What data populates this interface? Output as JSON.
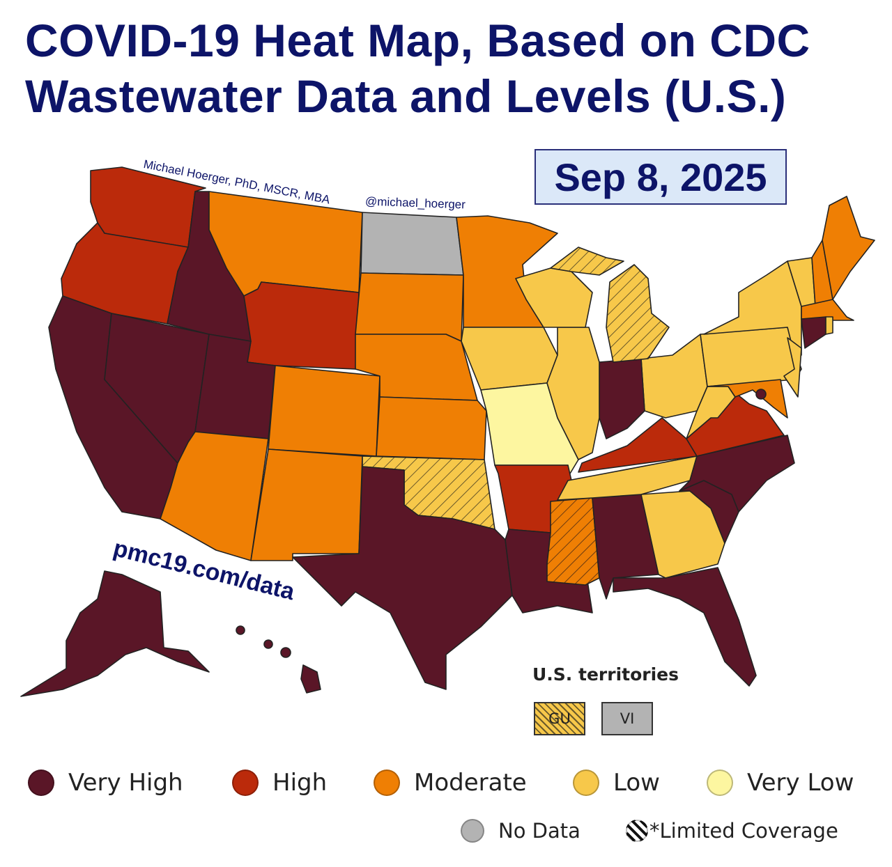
{
  "title_line1": "COVID-19 Heat Map, Based on CDC",
  "title_line2": "Wastewater Data and Levels (U.S.)",
  "date": "Sep 8, 2025",
  "credit": "Michael Hoerger, PhD, MSCR, MBA",
  "handle": "@michael_hoerger",
  "url": "pmc19.com/data",
  "territories": {
    "title": "U.S. territories",
    "items": [
      {
        "label": "GU",
        "level": "low",
        "limited": true
      },
      {
        "label": "VI",
        "level": "nodata",
        "limited": false
      }
    ]
  },
  "colors": {
    "veryhigh": "#5a1627",
    "high": "#bb2a0b",
    "moderate": "#ef7f04",
    "low": "#f7c84a",
    "verylow": "#fdf6a0",
    "nodata": "#b3b3b3",
    "title": "#0d1468"
  },
  "legend": [
    {
      "key": "veryhigh",
      "label": "Very High"
    },
    {
      "key": "high",
      "label": "High"
    },
    {
      "key": "moderate",
      "label": "Moderate"
    },
    {
      "key": "low",
      "label": "Low"
    },
    {
      "key": "verylow",
      "label": "Very Low"
    },
    {
      "key": "nodata",
      "label": "No Data"
    },
    {
      "key": "limited",
      "label": "*Limited Coverage"
    }
  ],
  "map_data": {
    "WA": "high",
    "OR": "high",
    "CA": "veryhigh",
    "NV": "veryhigh",
    "ID": "veryhigh",
    "MT": "moderate",
    "WY": "high",
    "UT": "veryhigh",
    "CO": "moderate",
    "AZ": "moderate",
    "NM": "moderate",
    "ND": "nodata",
    "SD": "moderate",
    "NE": "moderate",
    "KS": "moderate",
    "OK": "low",
    "TX": "veryhigh",
    "MN": "moderate",
    "IA": "low",
    "MO": "verylow",
    "AR": "high",
    "LA": "veryhigh",
    "WI": "low",
    "IL": "low",
    "MS": "moderate",
    "MI": "low",
    "MIU": "low",
    "IN": "veryhigh",
    "OH": "low",
    "KY": "high",
    "TN": "low",
    "AL": "veryhigh",
    "GA": "low",
    "FL": "veryhigh",
    "SC": "veryhigh",
    "NC": "veryhigh",
    "VA": "high",
    "WV": "low",
    "MD": "moderate",
    "PA": "low",
    "NJ": "low",
    "NY": "low",
    "VT": "low",
    "NH": "moderate",
    "ME": "moderate",
    "MA": "moderate",
    "CT": "veryhigh",
    "RI": "low",
    "AK": "veryhigh",
    "HI": "veryhigh",
    "DC": "veryhigh"
  },
  "limited_coverage": [
    "OK",
    "MS",
    "MI",
    "MIU"
  ]
}
